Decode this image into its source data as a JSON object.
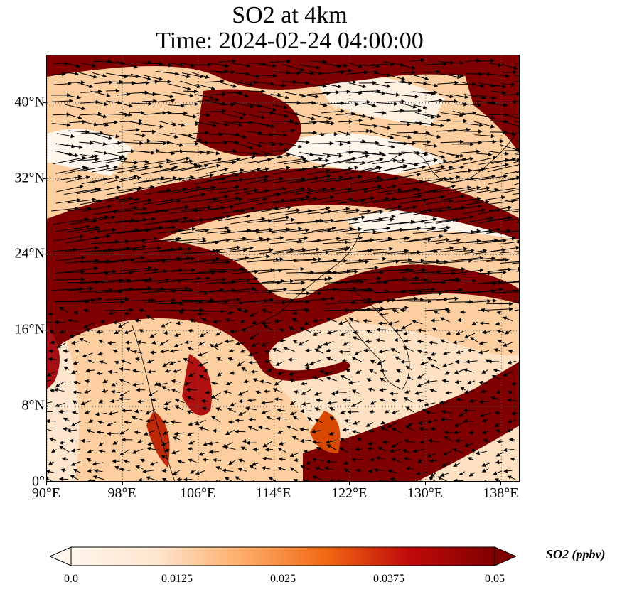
{
  "title": {
    "line1": "SO2 at 4km",
    "line2": "Time: 2024-02-24 04:00:00"
  },
  "map": {
    "lon_range": [
      90,
      140
    ],
    "lat_range": [
      0,
      45
    ],
    "lat_ticks": [
      {
        "value": 0,
        "label": "0°"
      },
      {
        "value": 8,
        "label": "8°N"
      },
      {
        "value": 16,
        "label": "16°N"
      },
      {
        "value": 24,
        "label": "24°N"
      },
      {
        "value": 32,
        "label": "32°N"
      },
      {
        "value": 40,
        "label": "40°N"
      }
    ],
    "lon_ticks": [
      {
        "value": 90,
        "label": "90°E"
      },
      {
        "value": 98,
        "label": "98°E"
      },
      {
        "value": 106,
        "label": "106°E"
      },
      {
        "value": 114,
        "label": "114°E"
      },
      {
        "value": 122,
        "label": "122°E"
      },
      {
        "value": 130,
        "label": "130°E"
      },
      {
        "value": 138,
        "label": "138°E"
      }
    ],
    "gridlines": "dotted",
    "overlay": "wind vectors (black arrows)",
    "colormap": [
      "#fff5eb",
      "#fdd0a2",
      "#fd8d3c",
      "#d94801",
      "#8c0d04",
      "#7f0000"
    ]
  },
  "colorbar": {
    "label": "SO2 (ppbv)",
    "min": 0.0,
    "max": 0.05,
    "tick_labels": [
      "0.0",
      "0.0125",
      "0.025",
      "0.0375",
      "0.05"
    ],
    "extend": "both"
  }
}
